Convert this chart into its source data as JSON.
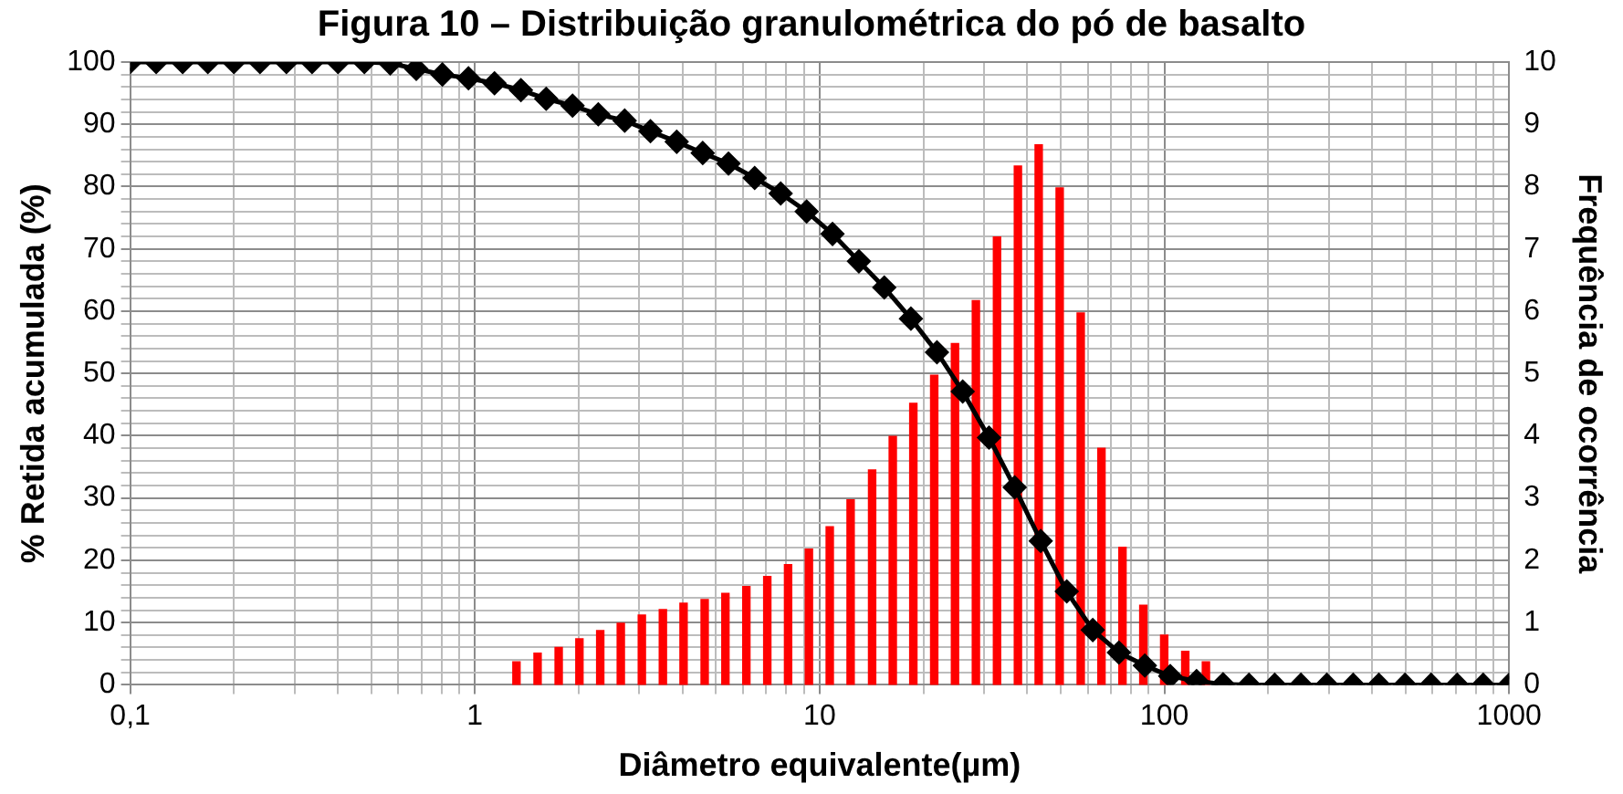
{
  "chart_data": {
    "type": "line",
    "title": "Figura 10 – Distribuição granulométrica do pó de basalto",
    "xlabel": "Diâmetro equivalente(µm)",
    "ylabel": "% Retida acumulada (%)",
    "y2label": "Frequência de ocorrência",
    "log": "x",
    "grid": true,
    "xlim": [
      0.1,
      1000
    ],
    "xticks": [
      {
        "value": 0.1,
        "label": "0,1"
      },
      {
        "value": 0.2,
        "label": null
      },
      {
        "value": 0.3,
        "label": null
      },
      {
        "value": 0.4,
        "label": null
      },
      {
        "value": 0.5,
        "label": null
      },
      {
        "value": 0.6,
        "label": null
      },
      {
        "value": 0.7,
        "label": null
      },
      {
        "value": 0.8,
        "label": null
      },
      {
        "value": 0.9,
        "label": null
      },
      1,
      {
        "value": 2,
        "label": null
      },
      {
        "value": 3,
        "label": null
      },
      {
        "value": 4,
        "label": null
      },
      {
        "value": 5,
        "label": null
      },
      {
        "value": 6,
        "label": null
      },
      {
        "value": 7,
        "label": null
      },
      {
        "value": 8,
        "label": null
      },
      {
        "value": 9,
        "label": null
      },
      10,
      {
        "value": 20,
        "label": null
      },
      {
        "value": 30,
        "label": null
      },
      {
        "value": 40,
        "label": null
      },
      {
        "value": 50,
        "label": null
      },
      {
        "value": 60,
        "label": null
      },
      {
        "value": 70,
        "label": null
      },
      {
        "value": 80,
        "label": null
      },
      {
        "value": 90,
        "label": null
      },
      100,
      {
        "value": 200,
        "label": null
      },
      {
        "value": 300,
        "label": null
      },
      {
        "value": 400,
        "label": null
      },
      {
        "value": 500,
        "label": null
      },
      {
        "value": 600,
        "label": null
      },
      {
        "value": 700,
        "label": null
      },
      {
        "value": 800,
        "label": null
      },
      {
        "value": 900,
        "label": null
      },
      1000
    ],
    "ylim": [
      0,
      100
    ],
    "yticks": [
      0,
      {
        "value": 2,
        "label": null
      },
      {
        "value": 4,
        "label": null
      },
      {
        "value": 6,
        "label": null
      },
      {
        "value": 8,
        "label": null
      },
      10,
      {
        "value": 12,
        "label": null
      },
      {
        "value": 14,
        "label": null
      },
      {
        "value": 16,
        "label": null
      },
      {
        "value": 18,
        "label": null
      },
      20,
      {
        "value": 22,
        "label": null
      },
      {
        "value": 24,
        "label": null
      },
      {
        "value": 26,
        "label": null
      },
      {
        "value": 28,
        "label": null
      },
      30,
      {
        "value": 32,
        "label": null
      },
      {
        "value": 34,
        "label": null
      },
      {
        "value": 36,
        "label": null
      },
      {
        "value": 38,
        "label": null
      },
      40,
      {
        "value": 42,
        "label": null
      },
      {
        "value": 44,
        "label": null
      },
      {
        "value": 46,
        "label": null
      },
      {
        "value": 48,
        "label": null
      },
      50,
      {
        "value": 52,
        "label": null
      },
      {
        "value": 54,
        "label": null
      },
      {
        "value": 56,
        "label": null
      },
      {
        "value": 58,
        "label": null
      },
      60,
      {
        "value": 62,
        "label": null
      },
      {
        "value": 64,
        "label": null
      },
      {
        "value": 66,
        "label": null
      },
      {
        "value": 68,
        "label": null
      },
      70,
      {
        "value": 72,
        "label": null
      },
      {
        "value": 74,
        "label": null
      },
      {
        "value": 76,
        "label": null
      },
      {
        "value": 78,
        "label": null
      },
      80,
      {
        "value": 82,
        "label": null
      },
      {
        "value": 84,
        "label": null
      },
      {
        "value": 86,
        "label": null
      },
      {
        "value": 88,
        "label": null
      },
      90,
      {
        "value": 92,
        "label": null
      },
      {
        "value": 94,
        "label": null
      },
      {
        "value": 96,
        "label": null
      },
      {
        "value": 98,
        "label": null
      },
      100
    ],
    "y2lim": [
      0,
      10
    ],
    "y2ticks": [
      0,
      1,
      2,
      3,
      4,
      5,
      6,
      7,
      8,
      9,
      10
    ],
    "series": [
      {
        "type": "bar",
        "axis": "y2",
        "color": "#ff0000",
        "x": [
          1.32,
          1.52,
          1.75,
          2.01,
          2.31,
          2.65,
          3.05,
          3.51,
          4.03,
          4.64,
          5.33,
          6.13,
          7.05,
          8.1,
          9.31,
          10.7,
          12.3,
          14.2,
          16.3,
          18.7,
          21.5,
          24.7,
          28.4,
          32.7,
          37.6,
          43.2,
          49.7,
          57.2,
          65.7,
          75.6,
          86.9,
          99.9,
          115,
          132
        ],
        "values": [
          0.37,
          0.51,
          0.6,
          0.74,
          0.87,
          0.99,
          1.12,
          1.21,
          1.31,
          1.37,
          1.47,
          1.58,
          1.74,
          1.93,
          2.18,
          2.54,
          2.97,
          3.45,
          3.99,
          4.52,
          4.97,
          5.48,
          6.17,
          7.19,
          8.33,
          8.67,
          7.98,
          5.97,
          3.8,
          2.21,
          1.28,
          0.8,
          0.54,
          0.37
        ]
      },
      {
        "color": "#000000",
        "marker": "diamond",
        "line_style": "solid",
        "x": [
          0.1,
          0.119,
          0.142,
          0.168,
          0.2,
          0.238,
          0.284,
          0.337,
          0.401,
          0.478,
          0.568,
          0.676,
          0.805,
          0.958,
          1.14,
          1.36,
          1.61,
          1.92,
          2.28,
          2.72,
          3.23,
          3.85,
          4.58,
          5.44,
          6.48,
          7.71,
          9.17,
          10.9,
          13,
          15.4,
          18.4,
          21.9,
          26,
          31,
          36.8,
          43.8,
          52.1,
          62,
          73.8,
          87.8,
          104,
          124,
          148,
          176,
          209,
          249,
          296,
          353,
          419,
          499,
          594,
          707,
          841,
          1000
        ],
        "values": [
          100,
          100,
          100,
          100,
          100,
          100,
          100,
          100,
          100,
          100,
          99.8,
          98.9,
          98,
          97.4,
          96.6,
          95.5,
          94.1,
          93,
          91.6,
          90.6,
          88.9,
          87.2,
          85.4,
          83.7,
          81.4,
          78.9,
          76,
          72.4,
          68,
          63.8,
          58.8,
          53.4,
          47.1,
          39.7,
          31.7,
          23.1,
          15,
          8.8,
          5.2,
          3.1,
          1.4,
          0.6,
          0.1,
          0,
          0,
          0,
          0,
          0,
          0,
          0,
          0,
          0,
          0,
          0
        ]
      }
    ]
  }
}
